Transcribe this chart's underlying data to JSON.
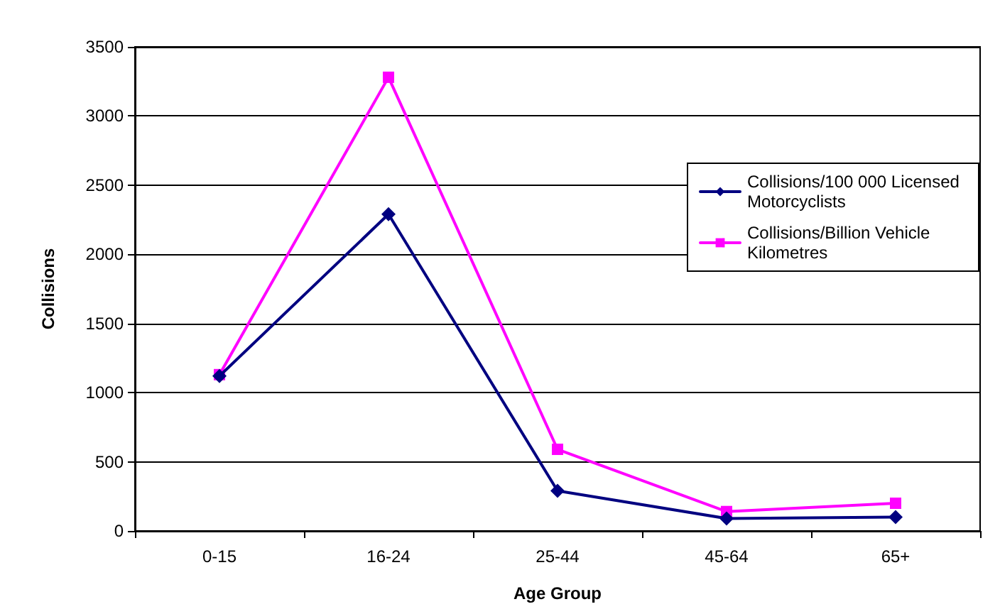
{
  "chart_data": {
    "type": "line",
    "xlabel": "Age Group",
    "ylabel": "Collisions",
    "categories": [
      "0-15",
      "16-24",
      "25-44",
      "45-64",
      "65+"
    ],
    "series": [
      {
        "name": "Collisions/100 000 Licensed Motorcyclists",
        "color": "#000080",
        "marker": "diamond",
        "values": [
          1120,
          2290,
          290,
          90,
          100
        ]
      },
      {
        "name": "Collisions/Billion Vehicle Kilometres",
        "color": "#ff00ff",
        "marker": "square",
        "values": [
          1130,
          3280,
          590,
          140,
          200
        ]
      }
    ],
    "ylim": [
      0,
      3500
    ],
    "yticks": [
      0,
      500,
      1000,
      1500,
      2000,
      2500,
      3000,
      3500
    ],
    "grid": "y",
    "legend": "right",
    "line_style": "solid"
  }
}
